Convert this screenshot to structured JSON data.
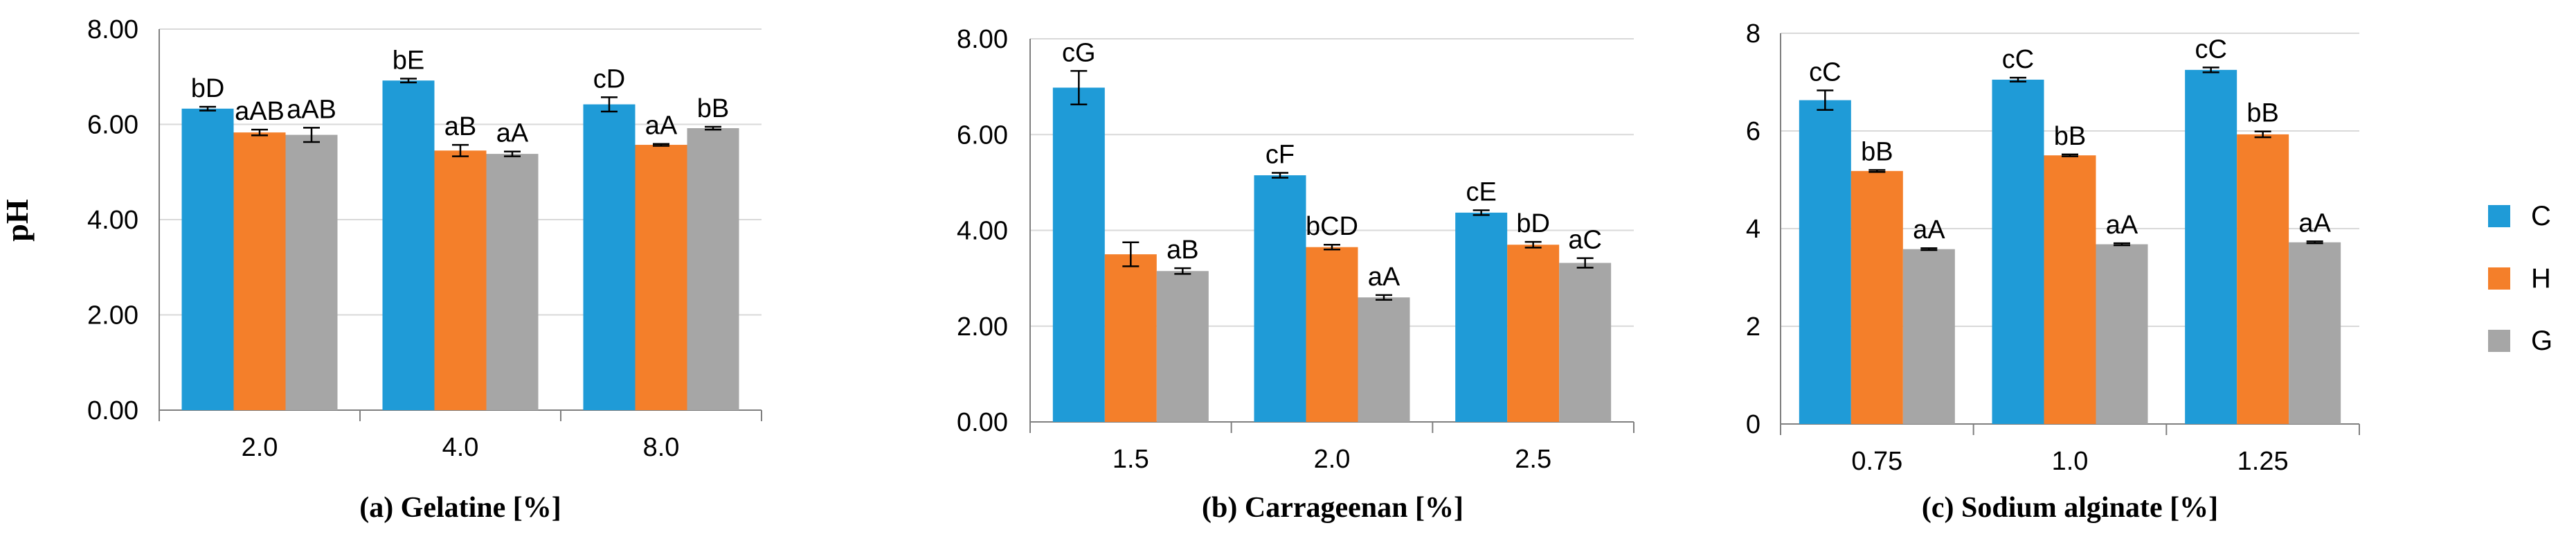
{
  "colors": {
    "C": "#1f9bd7",
    "H": "#f47f2a",
    "G": "#a6a6a6"
  },
  "legend": [
    {
      "key": "C",
      "label": "C"
    },
    {
      "key": "H",
      "label": "H"
    },
    {
      "key": "G",
      "label": "G"
    }
  ],
  "chart_data": [
    {
      "type": "bar",
      "caption": "(a)  Gelatine [%]",
      "ylabel": "pH",
      "categories": [
        "2.0",
        "4.0",
        "8.0"
      ],
      "ylim": [
        0,
        8
      ],
      "yticks": [
        0,
        2,
        4,
        6,
        8
      ],
      "ytick_labels": [
        "0.00",
        "2.00",
        "4.00",
        "6.00",
        "8.00"
      ],
      "series": [
        {
          "name": "C",
          "values": [
            6.33,
            6.92,
            6.42
          ],
          "errors": [
            0.04,
            0.04,
            0.15
          ],
          "labels": [
            "bD",
            "bE",
            "cD"
          ]
        },
        {
          "name": "H",
          "values": [
            5.83,
            5.45,
            5.57
          ],
          "errors": [
            0.06,
            0.12,
            0.02
          ],
          "labels": [
            "aAB",
            "aB",
            "aA"
          ]
        },
        {
          "name": "G",
          "values": [
            5.78,
            5.38,
            5.92
          ],
          "errors": [
            0.15,
            0.05,
            0.03
          ],
          "labels": [
            "aAB",
            "aA",
            "bB"
          ]
        }
      ]
    },
    {
      "type": "bar",
      "caption": "(b)  Carrageenan [%]",
      "ylabel": "",
      "categories": [
        "1.5",
        "2.0",
        "2.5"
      ],
      "ylim": [
        0,
        8
      ],
      "yticks": [
        0,
        2,
        4,
        6,
        8
      ],
      "ytick_labels": [
        "0.00",
        "2.00",
        "4.00",
        "6.00",
        "8.00"
      ],
      "series": [
        {
          "name": "C",
          "values": [
            6.98,
            5.15,
            4.37
          ],
          "errors": [
            0.35,
            0.05,
            0.05
          ],
          "labels": [
            "cG",
            "cF",
            "cE"
          ]
        },
        {
          "name": "H",
          "values": [
            3.5,
            3.65,
            3.7
          ],
          "errors": [
            0.25,
            0.05,
            0.06
          ],
          "labels": [
            "",
            "bCD",
            "bD"
          ]
        },
        {
          "name": "G",
          "values": [
            3.15,
            2.6,
            3.32
          ],
          "errors": [
            0.06,
            0.05,
            0.1
          ],
          "labels": [
            "aB",
            "aA",
            "aC"
          ]
        }
      ]
    },
    {
      "type": "bar",
      "caption": "(c)  Sodium alginate [%]",
      "ylabel": "",
      "categories": [
        "0.75",
        "1.0",
        "1.25"
      ],
      "ylim": [
        0,
        8
      ],
      "yticks": [
        0,
        2,
        4,
        6,
        8
      ],
      "ytick_labels": [
        "0",
        "2",
        "4",
        "6",
        "8"
      ],
      "series": [
        {
          "name": "C",
          "values": [
            6.63,
            7.05,
            7.25
          ],
          "errors": [
            0.2,
            0.04,
            0.05
          ],
          "labels": [
            "cC",
            "cC",
            "cC"
          ]
        },
        {
          "name": "H",
          "values": [
            5.18,
            5.5,
            5.93
          ],
          "errors": [
            0.02,
            0.02,
            0.06
          ],
          "labels": [
            "bB",
            "bB",
            "bB"
          ]
        },
        {
          "name": "G",
          "values": [
            3.58,
            3.68,
            3.72
          ],
          "errors": [
            0.02,
            0.02,
            0.02
          ],
          "labels": [
            "aA",
            "aA",
            "aA"
          ]
        }
      ]
    }
  ]
}
